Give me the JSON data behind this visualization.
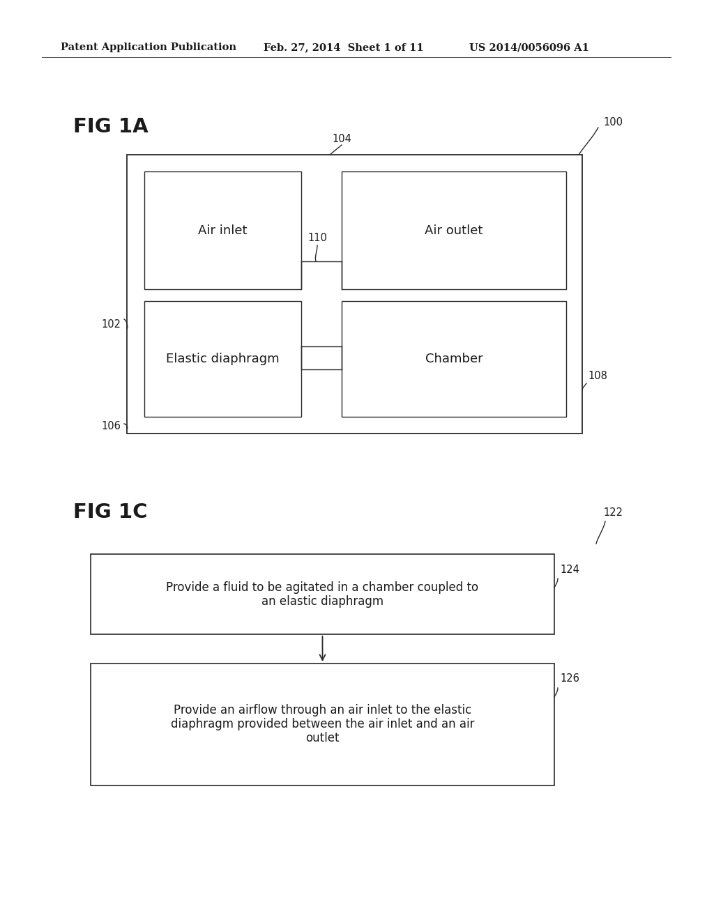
{
  "bg_color": "#ffffff",
  "header_text": "Patent Application Publication",
  "header_date": "Feb. 27, 2014  Sheet 1 of 11",
  "header_patent": "US 2014/0056096 A1",
  "fig1a_label": "FIG 1A",
  "fig1c_label": "FIG 1C",
  "ref_100": "100",
  "ref_102": "102",
  "ref_104": "104",
  "ref_106": "106",
  "ref_108": "108",
  "ref_110": "110",
  "ref_122": "122",
  "ref_124": "124",
  "ref_126": "126",
  "box_air_inlet": "Air inlet",
  "box_air_outlet": "Air outlet",
  "box_elastic": "Elastic diaphragm",
  "box_chamber": "Chamber",
  "flow_box1_line1": "Provide a fluid to be agitated in a chamber coupled to",
  "flow_box1_line2": "an elastic diaphragm",
  "flow_box2_line1": "Provide an airflow through an air inlet to the elastic",
  "flow_box2_line2": "diaphragm provided between the air inlet and an air",
  "flow_box2_line3": "outlet",
  "line_color": "#2a2a2a",
  "text_color": "#1a1a1a"
}
